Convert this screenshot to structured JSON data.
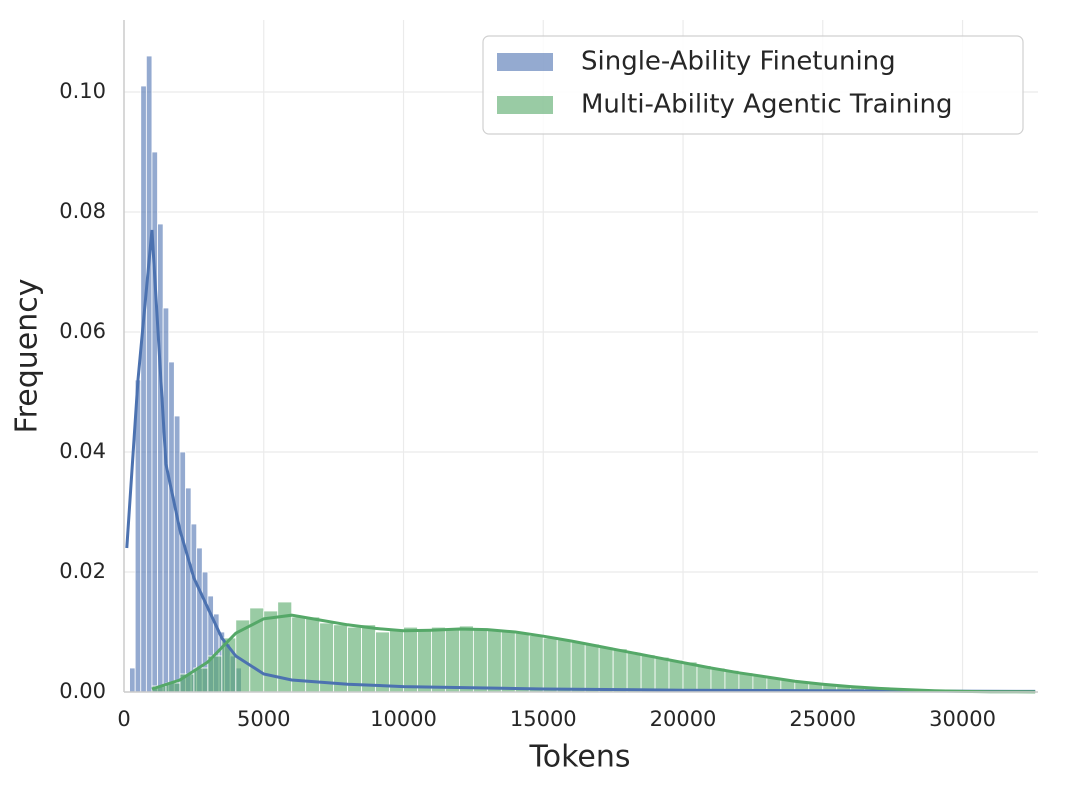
{
  "chart_data": {
    "type": "histogram",
    "xlabel": "Tokens",
    "ylabel": "Frequency",
    "xlim": [
      0,
      32700
    ],
    "ylim": [
      0,
      0.112
    ],
    "xticks": [
      0,
      5000,
      10000,
      15000,
      20000,
      25000,
      30000
    ],
    "yticks": [
      {
        "value": 0,
        "label": "0.00"
      },
      {
        "value": 0.02,
        "label": "0.02"
      },
      {
        "value": 0.04,
        "label": "0.04"
      },
      {
        "value": 0.06,
        "label": "0.06"
      },
      {
        "value": 0.08,
        "label": "0.08"
      },
      {
        "value": 0.1,
        "label": "0.10"
      }
    ],
    "grid": true,
    "legend": "upper right",
    "series": [
      {
        "name": "Single-Ability Finetuning",
        "color": "#4c72b0",
        "bins": [
          200,
          400,
          600,
          800,
          1000,
          1200,
          1400,
          1600,
          1800,
          2000,
          2200,
          2400,
          2600,
          2800,
          3000,
          3200,
          3400,
          3600,
          3800,
          4000,
          4200
        ],
        "values": [
          0.004,
          0.052,
          0.101,
          0.106,
          0.09,
          0.078,
          0.064,
          0.055,
          0.046,
          0.04,
          0.034,
          0.028,
          0.024,
          0.02,
          0.016,
          0.013,
          0.01,
          0.008,
          0.006,
          0.004
        ],
        "kde": {
          "x": [
            100,
            500,
            1000,
            1500,
            2000,
            2500,
            3000,
            3500,
            4000,
            5000,
            6000,
            8000,
            10000,
            15000,
            20000,
            25000,
            32600
          ],
          "y": [
            0.024,
            0.052,
            0.077,
            0.038,
            0.027,
            0.019,
            0.014,
            0.009,
            0.006,
            0.003,
            0.002,
            0.0013,
            0.0009,
            0.0005,
            0.0003,
            0.0002,
            0.0001
          ]
        }
      },
      {
        "name": "Multi-Ability Agentic Training",
        "color": "#55a868",
        "bins": [
          1000,
          1500,
          2000,
          2500,
          3000,
          3500,
          4000,
          4500,
          5000,
          5500,
          6000,
          6500,
          7000,
          7500,
          8000,
          8500,
          9000,
          9500,
          10000,
          10500,
          11000,
          11500,
          12000,
          12500,
          13000,
          13500,
          14000,
          14500,
          15000,
          15500,
          16000,
          16500,
          17000,
          17500,
          18000,
          18500,
          19000,
          19500,
          20000,
          20500,
          21000,
          21500,
          22000,
          22500,
          23000,
          23500,
          24000,
          24500,
          25000,
          25500,
          26000,
          26500,
          27000,
          27500,
          28000,
          28500,
          29000,
          29500,
          30000,
          30500,
          31000,
          31500,
          32000
        ],
        "values": [
          0.001,
          0.0015,
          0.003,
          0.004,
          0.006,
          0.009,
          0.012,
          0.014,
          0.0135,
          0.015,
          0.0125,
          0.0125,
          0.0115,
          0.0112,
          0.0108,
          0.0112,
          0.01,
          0.0105,
          0.0108,
          0.0102,
          0.0108,
          0.0105,
          0.011,
          0.0104,
          0.0103,
          0.0101,
          0.0098,
          0.0094,
          0.009,
          0.0087,
          0.0083,
          0.008,
          0.0075,
          0.0072,
          0.0066,
          0.0062,
          0.0058,
          0.0053,
          0.005,
          0.0044,
          0.004,
          0.0036,
          0.0032,
          0.0028,
          0.0024,
          0.002,
          0.0017,
          0.0014,
          0.0012,
          0.001,
          0.0008,
          0.0006,
          0.0005,
          0.0004,
          0.0003,
          0.0002,
          0.00015,
          0.0001,
          0.0001,
          5e-05,
          5e-05,
          3e-05
        ],
        "kde": {
          "x": [
            1000,
            2000,
            3000,
            4000,
            5000,
            6000,
            7000,
            8000,
            9000,
            10000,
            11000,
            12000,
            13000,
            14000,
            15000,
            16000,
            17000,
            18000,
            19000,
            20000,
            21000,
            22000,
            23000,
            24000,
            25000,
            26000,
            27000,
            28000,
            29000,
            30000,
            31000,
            32600
          ],
          "y": [
            0.0005,
            0.002,
            0.005,
            0.0098,
            0.0122,
            0.0128,
            0.012,
            0.0112,
            0.0106,
            0.0102,
            0.0103,
            0.0105,
            0.0104,
            0.01,
            0.0093,
            0.0085,
            0.0076,
            0.0067,
            0.0058,
            0.0049,
            0.004,
            0.0032,
            0.0025,
            0.0018,
            0.0013,
            0.0009,
            0.0006,
            0.0004,
            0.0002,
            0.0001,
            5e-05,
            2e-05
          ]
        }
      }
    ]
  }
}
